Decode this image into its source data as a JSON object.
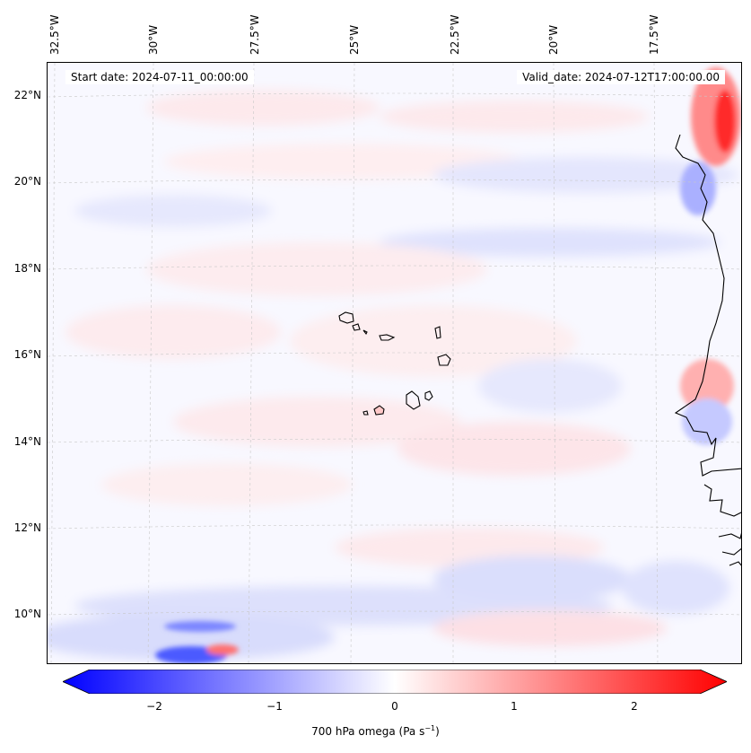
{
  "map": {
    "start_date": "Start date: 2024-07-11_00:00:00",
    "valid_date": "Valid_date: 2024-07-12T17:00:00.00",
    "lon_labels": [
      "32.5°W",
      "30°W",
      "27.5°W",
      "25°W",
      "22.5°W",
      "20°W",
      "17.5°W"
    ],
    "lat_labels": [
      "22°N",
      "20°N",
      "18°N",
      "16°N",
      "14°N",
      "12°N",
      "10°N"
    ],
    "gridlines": true,
    "features": [
      "Cape Verde islands",
      "West African coastline"
    ]
  },
  "colorbar": {
    "ticks": [
      "−2",
      "−1",
      "0",
      "1",
      "2"
    ],
    "label": "700 hPa omega (Pa s",
    "label_superscript": "−1",
    "label_suffix": ")",
    "range": [
      -2.6,
      2.6
    ],
    "colormap": "bwr",
    "colors": {
      "low": "#0000ff",
      "mid": "#ffffff",
      "high": "#ff0000"
    }
  }
}
